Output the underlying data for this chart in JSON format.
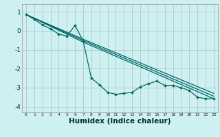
{
  "xlabel": "Humidex (Indice chaleur)",
  "bg_color": "#cef0f0",
  "grid_color": "#b0d0d0",
  "line_color": "#006868",
  "xlim": [
    -0.5,
    23.5
  ],
  "ylim": [
    -4.3,
    1.4
  ],
  "xticks": [
    0,
    1,
    2,
    3,
    4,
    5,
    6,
    7,
    8,
    9,
    10,
    11,
    12,
    13,
    14,
    15,
    16,
    17,
    18,
    19,
    20,
    21,
    22,
    23
  ],
  "yticks": [
    -4,
    -3,
    -2,
    -1,
    0,
    1
  ],
  "wiggly_x": [
    0,
    1,
    2,
    3,
    4,
    5,
    6,
    7,
    8,
    9,
    10,
    11,
    12,
    13,
    14,
    15,
    16,
    17,
    18,
    19,
    20,
    21,
    22,
    23
  ],
  "wiggly_y": [
    0.85,
    0.6,
    0.3,
    0.1,
    -0.18,
    -0.28,
    0.28,
    -0.55,
    -2.5,
    -2.85,
    -3.25,
    -3.35,
    -3.3,
    -3.25,
    -2.95,
    -2.8,
    -2.65,
    -2.88,
    -2.88,
    -3.0,
    -3.15,
    -3.5,
    -3.58,
    -3.58
  ],
  "line1_x": [
    0,
    7,
    23
  ],
  "line1_y": [
    0.85,
    -0.45,
    -3.3
  ],
  "line2_x": [
    0,
    7,
    23
  ],
  "line2_y": [
    0.85,
    -0.52,
    -3.45
  ],
  "line3_x": [
    0,
    7,
    23
  ],
  "line3_y": [
    0.85,
    -0.6,
    -3.58
  ]
}
